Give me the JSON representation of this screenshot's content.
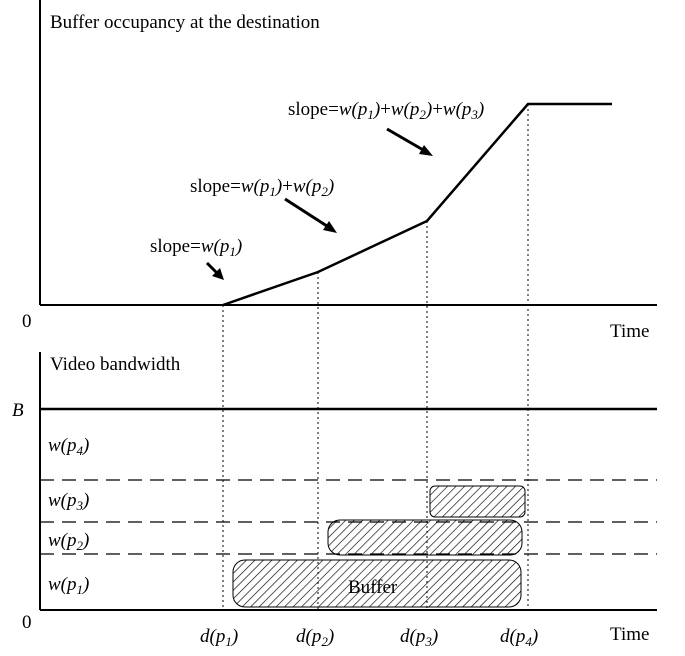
{
  "top_panel": {
    "title": "Buffer occupancy at the destination",
    "origin": "0",
    "x_label": "Time",
    "annotations": [
      [
        "slope=",
        "w(p",
        "1",
        ")"
      ],
      [
        "slope=",
        "w(p",
        "1",
        ")",
        "+",
        "w(p",
        "2",
        ")"
      ],
      [
        "slope=",
        "w(p",
        "1",
        ")",
        "+",
        "w(p",
        "2",
        ")",
        "+",
        "w(p",
        "3",
        ")"
      ]
    ]
  },
  "bottom_panel": {
    "title": "Video bandwidth",
    "origin": "0",
    "x_label": "Time",
    "bandwidth_label": "B",
    "levels": [
      [
        "w(p",
        "4",
        ")"
      ],
      [
        "w(p",
        "3",
        ")"
      ],
      [
        "w(p",
        "2",
        ")"
      ],
      [
        "w(p",
        "1",
        ")"
      ]
    ],
    "deadlines": [
      [
        "d(p",
        "1",
        ")"
      ],
      [
        "d(p",
        "2",
        ")"
      ],
      [
        "d(p",
        "3",
        ")"
      ],
      [
        "d(p",
        "4",
        ")"
      ]
    ],
    "buffer_label": "Buffer"
  }
}
